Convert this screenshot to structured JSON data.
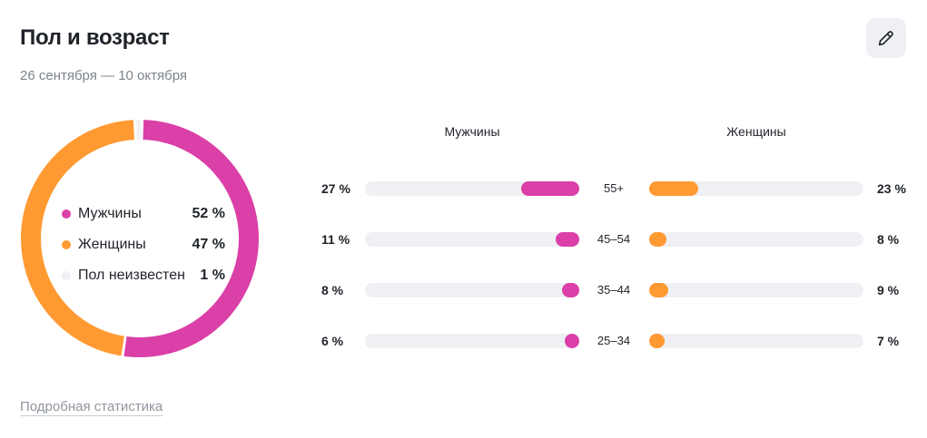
{
  "header": {
    "title": "Пол и возраст",
    "period": "26 сентября — 10 октября"
  },
  "icons": {
    "edit": "pencil-icon"
  },
  "colors": {
    "male": "#db3fa8",
    "female": "#ff9a33",
    "unknown": "#eef0f3",
    "track": "#eef0f3"
  },
  "legend": [
    {
      "label": "Мужчины",
      "value": "52 %"
    },
    {
      "label": "Женщины",
      "value": "47 %"
    },
    {
      "label": "Пол неизвестен",
      "value": "1 %"
    }
  ],
  "columns": {
    "male": "Мужчины",
    "female": "Женщины"
  },
  "rows": [
    {
      "age": "55+",
      "male_label": "27 %",
      "female_label": "23 %"
    },
    {
      "age": "45–54",
      "male_label": "11 %",
      "female_label": "8 %"
    },
    {
      "age": "35–44",
      "male_label": "8 %",
      "female_label": "9 %"
    },
    {
      "age": "25–34",
      "male_label": "6 %",
      "female_label": "7 %"
    }
  ],
  "footer": {
    "details_link": "Подробная статистика"
  },
  "chart_data": [
    {
      "type": "pie",
      "donut": true,
      "categories": [
        "Мужчины",
        "Женщины",
        "Пол неизвестен"
      ],
      "values": [
        52,
        47,
        1
      ]
    },
    {
      "type": "bar",
      "orientation": "horizontal",
      "categories": [
        "55+",
        "45–54",
        "35–44",
        "25–34"
      ],
      "series": [
        {
          "name": "Мужчины",
          "values": [
            27,
            11,
            8,
            6
          ]
        },
        {
          "name": "Женщины",
          "values": [
            23,
            8,
            9,
            7
          ]
        }
      ],
      "xlim": [
        0,
        100
      ]
    }
  ]
}
